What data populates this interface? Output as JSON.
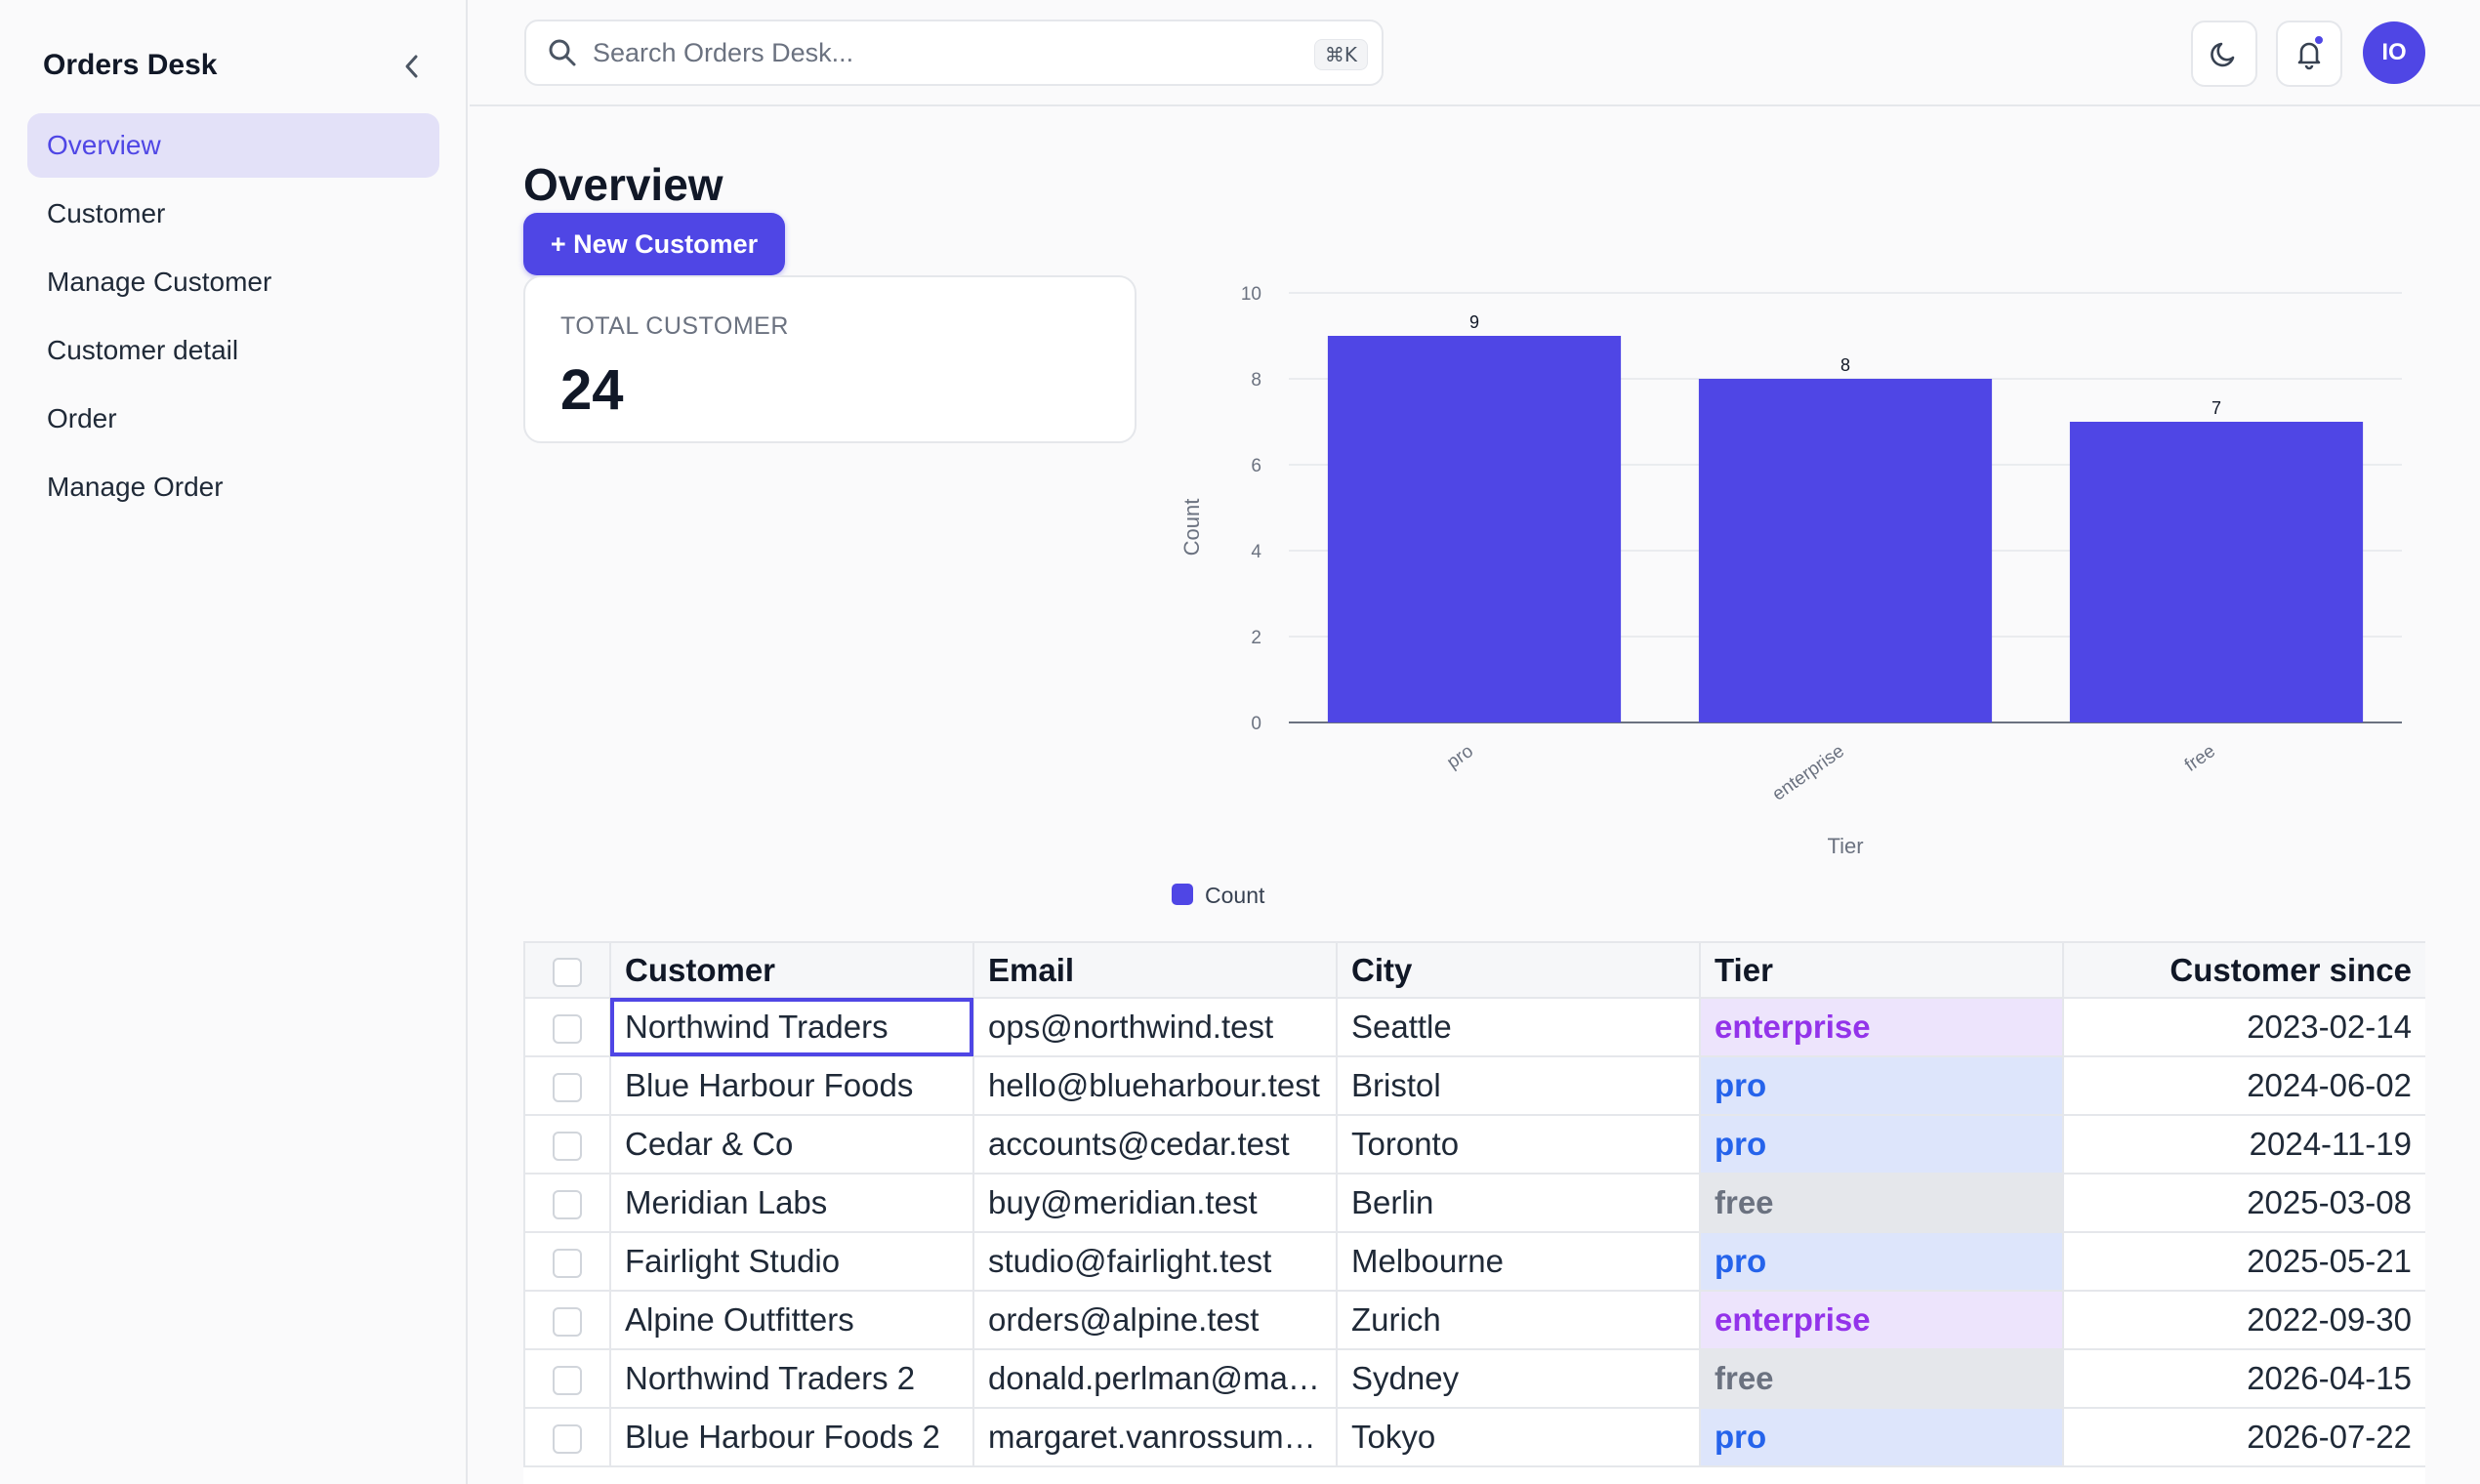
{
  "app": {
    "name": "Orders Desk"
  },
  "sidebar": {
    "items": [
      {
        "label": "Overview",
        "active": true
      },
      {
        "label": "Customer"
      },
      {
        "label": "Manage Customer"
      },
      {
        "label": "Customer detail"
      },
      {
        "label": "Order"
      },
      {
        "label": "Manage Order"
      }
    ]
  },
  "topbar": {
    "search_placeholder": "Search Orders Desk...",
    "shortcut": "⌘K",
    "avatar_initials": "IO"
  },
  "page": {
    "title": "Overview",
    "new_button": "+ New Customer",
    "stat": {
      "label": "TOTAL CUSTOMER",
      "value": "24"
    }
  },
  "chart_data": {
    "type": "bar",
    "categories": [
      "pro",
      "enterprise",
      "free"
    ],
    "series": [
      {
        "name": "Count",
        "values": [
          9,
          8,
          7
        ],
        "color": "#4f46e5"
      }
    ],
    "xlabel": "Tier",
    "ylabel": "Count",
    "ylim": [
      0,
      10
    ],
    "yticks": [
      0,
      2,
      4,
      6,
      8,
      10
    ],
    "grid": true,
    "legend": "bottom"
  },
  "table": {
    "columns": [
      "Customer",
      "Email",
      "City",
      "Tier",
      "Customer since"
    ],
    "rows": [
      [
        "Northwind Traders",
        "ops@northwind.test",
        "Seattle",
        "enterprise",
        "2023-02-14"
      ],
      [
        "Blue Harbour Foods",
        "hello@blueharbour.test",
        "Bristol",
        "pro",
        "2024-06-02"
      ],
      [
        "Cedar & Co",
        "accounts@cedar.test",
        "Toronto",
        "pro",
        "2024-11-19"
      ],
      [
        "Meridian Labs",
        "buy@meridian.test",
        "Berlin",
        "free",
        "2025-03-08"
      ],
      [
        "Fairlight Studio",
        "studio@fairlight.test",
        "Melbourne",
        "pro",
        "2025-05-21"
      ],
      [
        "Alpine Outfitters",
        "orders@alpine.test",
        "Zurich",
        "enterprise",
        "2022-09-30"
      ],
      [
        "Northwind Traders 2",
        "donald.perlman@mail....",
        "Sydney",
        "free",
        "2026-04-15"
      ],
      [
        "Blue Harbour Foods 2",
        "margaret.vanrossum@...",
        "Tokyo",
        "pro",
        "2026-07-22"
      ]
    ]
  },
  "colors": {
    "accent": "#4f46e5",
    "enterprise": "#9333ea",
    "pro": "#2563eb",
    "free": "#6b7280"
  }
}
